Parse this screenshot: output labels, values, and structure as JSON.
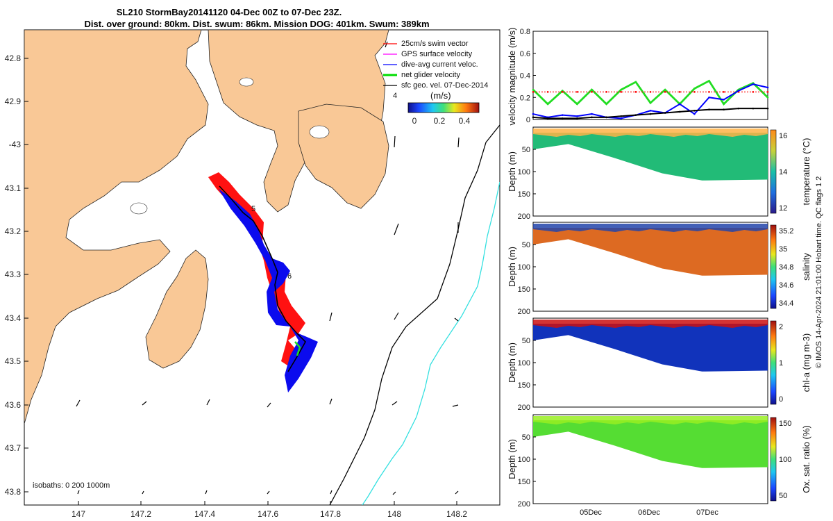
{
  "title": {
    "line1": "SL210 StormBay20141120 04-Dec 00Z to 07-Dec 23Z.",
    "line2": "Dist. over ground: 80km. Dist. swum: 86km. Mission DOG: 401km. Swum: 389km"
  },
  "map": {
    "lon_ticks": [
      "147",
      "147.2",
      "147.4",
      "147.6",
      "147.8",
      "148",
      "148.2"
    ],
    "lat_ticks": [
      "42.8",
      "42.9",
      "-43",
      "43.1",
      "43.2",
      "43.3",
      "43.4",
      "43.5",
      "43.6",
      "43.7",
      "43.8"
    ],
    "isobath_label": "isobaths: 0   200  1000m",
    "day_markers": [
      "4",
      "5",
      "6"
    ],
    "legend": [
      {
        "label": "25cm/s swim vector",
        "color": "#ff0000"
      },
      {
        "label": "GPS surface velocity",
        "color": "#ff00ff"
      },
      {
        "label": "dive-avg current veloc.",
        "color": "#0000ff"
      },
      {
        "label": "net glider velocity",
        "color": "#00dd00"
      },
      {
        "label": "sfc geo. vel. 07-Dec-2014",
        "color": "#000000"
      }
    ],
    "colorbar": {
      "title": "(m/s)",
      "ticks": [
        "0",
        "0.2",
        "0.4"
      ]
    },
    "colors": {
      "land": "#f9c896",
      "ocean": "#ffffff",
      "isobath200": "#000000",
      "isobath1000": "#33e0e0"
    }
  },
  "right_axis": "© IMOS 14-Apr-2024 21:01:00 Hobart time. QC flags 1  2",
  "chart_data": [
    {
      "type": "line",
      "ylabel": "velocity magnitude (m/s)",
      "ylim": [
        0,
        0.8
      ],
      "yticks": [
        "0",
        "0.2",
        "0.4",
        "0.6",
        "0.8"
      ],
      "x": [
        0,
        0.25,
        0.5,
        0.75,
        1,
        1.25,
        1.5,
        1.75,
        2,
        2.25,
        2.5,
        2.75,
        3,
        3.25,
        3.5,
        3.75,
        4
      ],
      "series": [
        {
          "name": "net glider velocity",
          "color": "#22dd22",
          "values": [
            0.27,
            0.14,
            0.26,
            0.14,
            0.27,
            0.14,
            0.27,
            0.34,
            0.15,
            0.27,
            0.14,
            0.28,
            0.35,
            0.14,
            0.27,
            0.33,
            0.2
          ]
        },
        {
          "name": "swim vector",
          "color": "#ff0000",
          "values": [
            0.25,
            0.25,
            0.25,
            0.25,
            0.25,
            0.25,
            0.25,
            0.25,
            0.25,
            0.25,
            0.25,
            0.25,
            0.25,
            0.25,
            0.25,
            0.25,
            0.25
          ]
        },
        {
          "name": "dive-avg current veloc.",
          "color": "#0000ff",
          "values": [
            0.05,
            0.02,
            0.04,
            0.03,
            0.05,
            0.02,
            0.01,
            0.04,
            0.08,
            0.06,
            0.14,
            0.05,
            0.2,
            0.18,
            0.26,
            0.32,
            0.29
          ]
        },
        {
          "name": "surface velocity",
          "color": "#000000",
          "values": [
            0.02,
            0.01,
            0.01,
            0.01,
            0.02,
            0.02,
            0.03,
            0.04,
            0.05,
            0.06,
            0.07,
            0.08,
            0.09,
            0.09,
            0.1,
            0.1,
            0.1
          ]
        }
      ]
    },
    {
      "type": "heatmap",
      "variable": "temperature (°C)",
      "ylabel": "Depth (m)",
      "ylim": [
        200,
        0
      ],
      "yticks": [
        "50",
        "100",
        "150",
        "200"
      ],
      "cbar_ticks": [
        "12",
        "14",
        "16"
      ],
      "palette": "parula-like",
      "surface": "#ffb347",
      "fill": "#22bb77"
    },
    {
      "type": "heatmap",
      "variable": "salinity",
      "ylabel": "Depth (m)",
      "ylim": [
        200,
        0
      ],
      "yticks": [
        "50",
        "100",
        "150",
        "200"
      ],
      "cbar_ticks": [
        "34.4",
        "34.6",
        "34.8",
        "35",
        "35.2"
      ],
      "surface": "#2244aa",
      "fill": "#dd6a22"
    },
    {
      "type": "heatmap",
      "variable": "chl-a (mg m-3)",
      "ylabel": "Depth (m)",
      "ylim": [
        200,
        0
      ],
      "yticks": [
        "50",
        "100",
        "150",
        "200"
      ],
      "cbar_ticks": [
        "0",
        "1",
        "2"
      ],
      "surface": "#cc1111",
      "fill": "#1133bb"
    },
    {
      "type": "heatmap",
      "variable": "Ox. sat. ratio (%)",
      "ylabel": "Depth (m)",
      "ylim": [
        200,
        0
      ],
      "yticks": [
        "50",
        "100",
        "150",
        "200"
      ],
      "cbar_ticks": [
        "50",
        "100",
        "150"
      ],
      "surface": "#99ee22",
      "fill": "#55dd33"
    },
    {
      "type": "axis",
      "xlabel_ticks": [
        "05Dec",
        "06Dec",
        "07Dec"
      ]
    }
  ]
}
